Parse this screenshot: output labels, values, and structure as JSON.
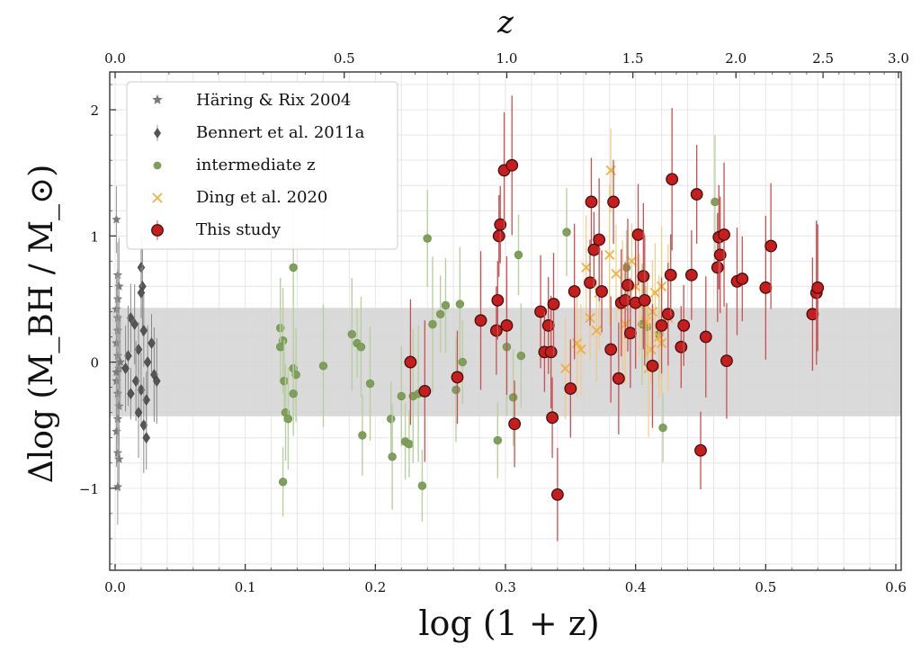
{
  "chart_data": {
    "type": "scatter",
    "xlabel": "log (1 + z)",
    "ylabel": "Δlog (M_BH / M_⊙)",
    "top_axis_label": "z",
    "xlim": [
      0.0,
      0.6
    ],
    "ylim": [
      -1.65,
      2.3
    ],
    "x_ticks": [
      "0.0",
      "0.1",
      "0.2",
      "0.3",
      "0.4",
      "0.5",
      "0.6"
    ],
    "y_ticks": [
      "−1",
      "0",
      "1",
      "2"
    ],
    "top_ticks": [
      "0.0",
      "0.5",
      "1.0",
      "1.5",
      "2.0",
      "2.5",
      "3.0"
    ],
    "grid": true,
    "shaded_band": [
      -0.43,
      0.43
    ],
    "legend_position": "top-left",
    "colors": {
      "haring": "#7a7a7a",
      "bennert": "#555555",
      "intermediate": "#7ea05a",
      "ding": "#f0b040",
      "this_study_fill": "#c41e1e",
      "this_study_err": "#c85050",
      "band": "#d3d3d3"
    },
    "series": [
      {
        "name": "Häring & Rix 2004",
        "marker": "star",
        "color": "#7a7a7a",
        "points": [
          [
            0.001,
            1.13
          ],
          [
            0.002,
            0.69
          ],
          [
            0.003,
            0.6
          ],
          [
            0.002,
            0.5
          ],
          [
            0.001,
            0.42
          ],
          [
            0.002,
            0.35
          ],
          [
            0.002,
            0.25
          ],
          [
            0.001,
            0.15
          ],
          [
            0.002,
            0.05
          ],
          [
            0.003,
            -0.05
          ],
          [
            0.001,
            -0.15
          ],
          [
            0.002,
            -0.25
          ],
          [
            0.003,
            -0.35
          ],
          [
            0.002,
            -0.45
          ],
          [
            0.001,
            -0.55
          ],
          [
            0.002,
            -0.72
          ],
          [
            0.003,
            -0.77
          ],
          [
            0.002,
            -0.99
          ],
          [
            0.004,
            0.0
          ],
          [
            0.001,
            -0.08
          ]
        ]
      },
      {
        "name": "Bennert et al. 2011a",
        "marker": "diamond",
        "color": "#555555",
        "points": [
          [
            0.02,
            0.75
          ],
          [
            0.021,
            0.6
          ],
          [
            0.02,
            0.55
          ],
          [
            0.012,
            0.35
          ],
          [
            0.015,
            0.3
          ],
          [
            0.022,
            0.25
          ],
          [
            0.018,
            0.1
          ],
          [
            0.01,
            0.05
          ],
          [
            0.025,
            0.0
          ],
          [
            0.03,
            -0.1
          ],
          [
            0.016,
            -0.15
          ],
          [
            0.02,
            -0.22
          ],
          [
            0.024,
            -0.3
          ],
          [
            0.018,
            -0.4
          ],
          [
            0.022,
            -0.5
          ],
          [
            0.024,
            -0.6
          ],
          [
            0.012,
            -0.25
          ],
          [
            0.028,
            0.15
          ],
          [
            0.008,
            -0.05
          ],
          [
            0.032,
            -0.15
          ]
        ]
      },
      {
        "name": "intermediate z",
        "marker": "circle",
        "color": "#7ea05a",
        "points": [
          [
            0.127,
            0.27
          ],
          [
            0.129,
            0.17
          ],
          [
            0.127,
            0.12
          ],
          [
            0.13,
            -0.15
          ],
          [
            0.131,
            -0.4
          ],
          [
            0.133,
            -0.45
          ],
          [
            0.129,
            -0.95
          ],
          [
            0.137,
            0.75
          ],
          [
            0.137,
            -0.05
          ],
          [
            0.139,
            -0.1
          ],
          [
            0.137,
            -0.25
          ],
          [
            0.16,
            -0.03
          ],
          [
            0.182,
            0.22
          ],
          [
            0.186,
            0.15
          ],
          [
            0.189,
            0.12
          ],
          [
            0.19,
            -0.58
          ],
          [
            0.196,
            -0.17
          ],
          [
            0.212,
            -0.45
          ],
          [
            0.213,
            -0.75
          ],
          [
            0.22,
            -0.27
          ],
          [
            0.223,
            -0.63
          ],
          [
            0.226,
            -0.65
          ],
          [
            0.229,
            -0.27
          ],
          [
            0.233,
            -0.25
          ],
          [
            0.236,
            -0.98
          ],
          [
            0.24,
            0.98
          ],
          [
            0.244,
            0.3
          ],
          [
            0.25,
            0.38
          ],
          [
            0.254,
            0.45
          ],
          [
            0.262,
            -0.22
          ],
          [
            0.265,
            0.46
          ],
          [
            0.267,
            0.0
          ],
          [
            0.294,
            -0.62
          ],
          [
            0.301,
            0.12
          ],
          [
            0.306,
            -0.28
          ],
          [
            0.31,
            0.85
          ],
          [
            0.312,
            0.05
          ],
          [
            0.347,
            1.03
          ],
          [
            0.393,
            0.75
          ],
          [
            0.405,
            0.3
          ],
          [
            0.409,
            0.28
          ],
          [
            0.418,
            0.22
          ],
          [
            0.421,
            -0.52
          ],
          [
            0.461,
            1.27
          ]
        ]
      },
      {
        "name": "Ding et al. 2020",
        "marker": "cross",
        "color": "#f0b040",
        "points": [
          [
            0.381,
            1.52
          ],
          [
            0.38,
            0.85
          ],
          [
            0.362,
            0.75
          ],
          [
            0.365,
            0.35
          ],
          [
            0.372,
            0.55
          ],
          [
            0.385,
            0.7
          ],
          [
            0.39,
            0.45
          ],
          [
            0.392,
            0.3
          ],
          [
            0.397,
            0.8
          ],
          [
            0.4,
            0.6
          ],
          [
            0.403,
            0.45
          ],
          [
            0.408,
            0.32
          ],
          [
            0.412,
            0.1
          ],
          [
            0.415,
            0.55
          ],
          [
            0.418,
            0.2
          ],
          [
            0.42,
            0.6
          ],
          [
            0.425,
            0.35
          ],
          [
            0.358,
            0.1
          ],
          [
            0.346,
            -0.05
          ],
          [
            0.355,
            0.15
          ],
          [
            0.37,
            0.25
          ],
          [
            0.41,
            -0.05
          ],
          [
            0.413,
            0.4
          ],
          [
            0.42,
            0.15
          ]
        ]
      },
      {
        "name": "This study",
        "marker": "circle",
        "color": "#c41e1e",
        "points": [
          [
            0.227,
            0.0
          ],
          [
            0.238,
            -0.23
          ],
          [
            0.263,
            -0.12
          ],
          [
            0.281,
            0.33
          ],
          [
            0.293,
            0.25
          ],
          [
            0.294,
            0.49
          ],
          [
            0.295,
            1.0
          ],
          [
            0.296,
            1.09
          ],
          [
            0.299,
            1.52
          ],
          [
            0.301,
            0.29
          ],
          [
            0.305,
            1.56
          ],
          [
            0.307,
            -0.49
          ],
          [
            0.327,
            0.4
          ],
          [
            0.33,
            0.08
          ],
          [
            0.333,
            0.29
          ],
          [
            0.335,
            0.08
          ],
          [
            0.336,
            -0.44
          ],
          [
            0.337,
            0.46
          ],
          [
            0.34,
            -1.05
          ],
          [
            0.35,
            -0.21
          ],
          [
            0.353,
            0.56
          ],
          [
            0.365,
            0.63
          ],
          [
            0.366,
            1.27
          ],
          [
            0.368,
            0.89
          ],
          [
            0.372,
            0.97
          ],
          [
            0.374,
            0.56
          ],
          [
            0.381,
            0.1
          ],
          [
            0.383,
            1.27
          ],
          [
            0.387,
            -0.13
          ],
          [
            0.389,
            0.47
          ],
          [
            0.392,
            0.49
          ],
          [
            0.394,
            0.61
          ],
          [
            0.396,
            0.23
          ],
          [
            0.4,
            0.47
          ],
          [
            0.402,
            1.01
          ],
          [
            0.406,
            0.68
          ],
          [
            0.407,
            0.49
          ],
          [
            0.413,
            -0.03
          ],
          [
            0.42,
            0.29
          ],
          [
            0.425,
            0.38
          ],
          [
            0.427,
            0.69
          ],
          [
            0.428,
            1.45
          ],
          [
            0.435,
            0.12
          ],
          [
            0.437,
            0.29
          ],
          [
            0.443,
            0.69
          ],
          [
            0.447,
            1.33
          ],
          [
            0.45,
            -0.7
          ],
          [
            0.454,
            0.2
          ],
          [
            0.463,
            0.75
          ],
          [
            0.464,
            0.99
          ],
          [
            0.465,
            0.85
          ],
          [
            0.468,
            1.01
          ],
          [
            0.47,
            0.01
          ],
          [
            0.478,
            0.64
          ],
          [
            0.482,
            0.66
          ],
          [
            0.5,
            0.59
          ],
          [
            0.504,
            0.92
          ],
          [
            0.536,
            0.38
          ],
          [
            0.539,
            0.55
          ],
          [
            0.54,
            0.59
          ]
        ]
      }
    ]
  }
}
